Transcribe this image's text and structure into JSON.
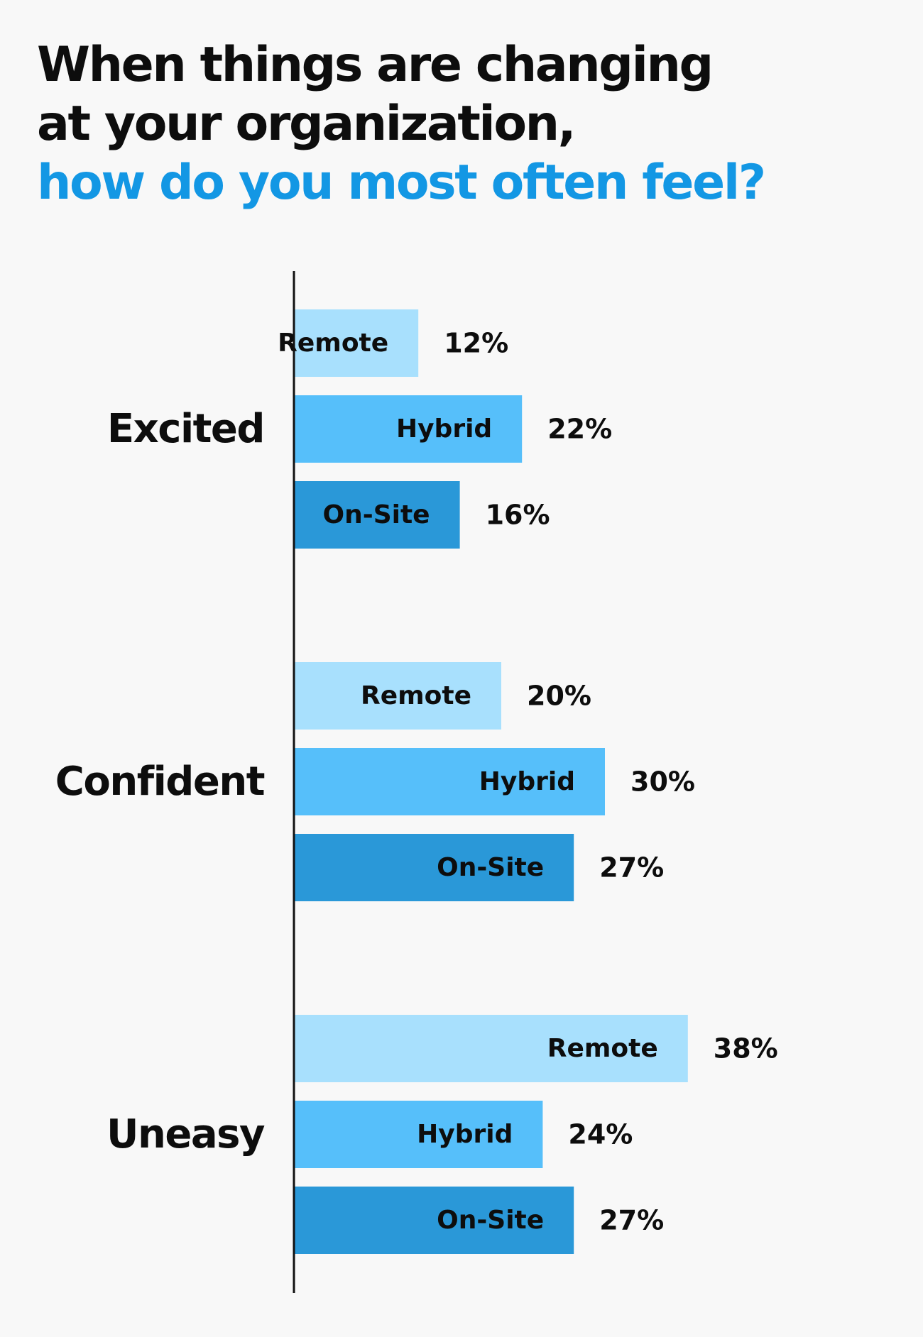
{
  "title": {
    "line1": "When things are changing",
    "line2": "at your organization,",
    "line3": "how do you most often feel?"
  },
  "colors": {
    "accent": "#1397e4",
    "remote": "#a8e0fd",
    "hybrid": "#56bffa",
    "onsite": "#2a98d8",
    "axis": "#111111",
    "text": "#0d0d0d"
  },
  "chart_data": {
    "type": "bar",
    "orientation": "horizontal",
    "categories": [
      "Excited",
      "Confident",
      "Uneasy"
    ],
    "series": [
      {
        "name": "Remote",
        "color": "#a8e0fd",
        "values": [
          12,
          20,
          38
        ]
      },
      {
        "name": "Hybrid",
        "color": "#56bffa",
        "values": [
          22,
          30,
          24
        ]
      },
      {
        "name": "On-Site",
        "color": "#2a98d8",
        "values": [
          16,
          27,
          27
        ]
      }
    ],
    "value_suffix": "%",
    "xlim": [
      0,
      40
    ],
    "grid": false,
    "legend": "none"
  }
}
